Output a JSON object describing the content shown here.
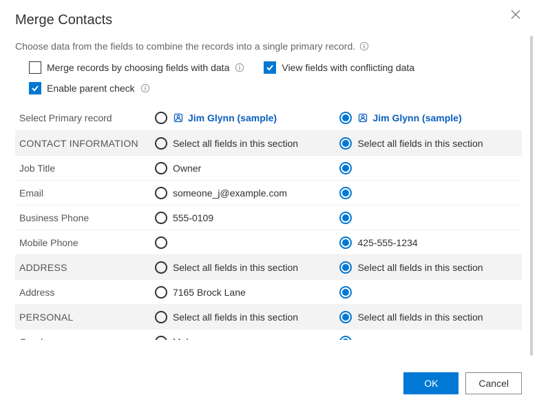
{
  "dialog": {
    "title": "Merge Contacts",
    "subtitle": "Choose data from the fields to combine the records into a single primary record."
  },
  "options": {
    "merge_by_fields": {
      "label": "Merge records by choosing fields with data",
      "checked": false
    },
    "view_conflicts": {
      "label": "View fields with conflicting data",
      "checked": true
    },
    "parent_check": {
      "label": "Enable parent check",
      "checked": true
    }
  },
  "header": {
    "primary_label": "Select Primary record",
    "record_a": "Jim Glynn (sample)",
    "record_b": "Jim Glynn (sample)",
    "selected": "b"
  },
  "section_label": "Select all fields in this section",
  "sections": [
    {
      "name": "CONTACT INFORMATION",
      "fields": [
        {
          "label": "Job Title",
          "a": "Owner",
          "b": "",
          "sel": "b"
        },
        {
          "label": "Email",
          "a": "someone_j@example.com",
          "b": "",
          "sel": "b"
        },
        {
          "label": "Business Phone",
          "a": "555-0109",
          "b": "",
          "sel": "b"
        },
        {
          "label": "Mobile Phone",
          "a": "",
          "b": "425-555-1234",
          "sel": "b"
        }
      ]
    },
    {
      "name": "ADDRESS",
      "fields": [
        {
          "label": "Address",
          "a": "7165 Brock Lane",
          "b": "",
          "sel": "b"
        }
      ]
    },
    {
      "name": "PERSONAL",
      "fields": [
        {
          "label": "Gender",
          "a": "Male",
          "b": "",
          "sel": "b"
        }
      ]
    }
  ],
  "buttons": {
    "ok": "OK",
    "cancel": "Cancel"
  },
  "colors": {
    "primary": "#0078d4",
    "link": "#0a5fbf",
    "section_bg": "#f3f3f3",
    "text": "#323130",
    "muted": "#666666",
    "border": "#f0f0f0",
    "button_border": "#8a8886"
  }
}
